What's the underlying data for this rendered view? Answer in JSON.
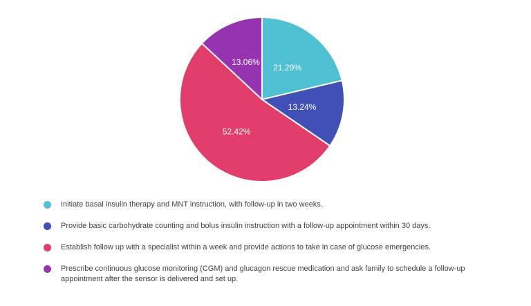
{
  "chart_data": {
    "type": "pie",
    "title": "",
    "start_angle_deg": 0,
    "direction": "clockwise",
    "values": [
      21.29,
      13.24,
      52.42,
      13.06
    ],
    "slice_labels": [
      "21.29%",
      "13.24%",
      "52.42%",
      "13.06%"
    ],
    "colors": [
      "#4EC1D3",
      "#4150B7",
      "#E23C6B",
      "#9634B0"
    ],
    "slice_label_color": "#ffffff",
    "slice_border_color": "#ffffff",
    "legend_position": "bottom-left",
    "legend": [
      {
        "label": "Initiate basal insulin therapy and MNT instruction, with follow-up in two weeks.",
        "color": "#4EC1D3"
      },
      {
        "label": "Provide basic carbohydrate counting and bolus insulin instruction with a follow-up appointment within 30 days.",
        "color": "#4150B7"
      },
      {
        "label": "Establish follow up with a specialist within a week and provide actions to take in case of glucose emergencies.",
        "color": "#E23C6B"
      },
      {
        "label": "Prescribe continuous glucose monitoring (CGM) and glucagon rescue medication and ask family to schedule a follow-up appointment after the sensor is delivered and set up.",
        "color": "#9634B0"
      }
    ]
  }
}
